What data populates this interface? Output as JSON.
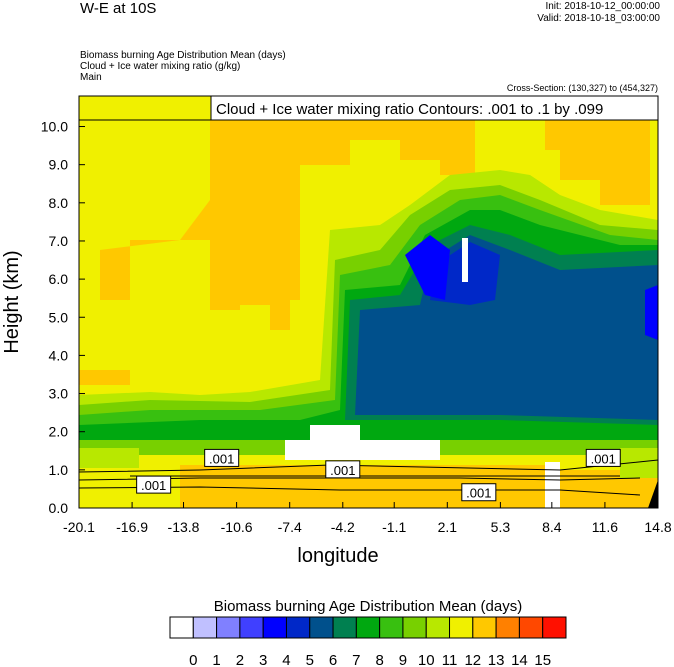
{
  "header": {
    "title": "W-E at 10S",
    "init": "Init: 2018-10-12_00:00:00",
    "valid": "Valid: 2018-10-18_03:00:00",
    "field1": "Biomass burning Age Distribution Mean   (days)",
    "field2": "Cloud + Ice water mixing ratio   (g/kg)",
    "field3": "Main",
    "cross_section": "Cross-Section: (130,327) to (454,327)"
  },
  "chart_data": {
    "type": "heatmap",
    "title": "W-E at 10S",
    "xlabel": "longitude",
    "ylabel": "Height (km)",
    "xlim": [
      -20.1,
      14.8
    ],
    "ylim": [
      0.0,
      10.8
    ],
    "xticks": [
      "-20.1",
      "-16.9",
      "-13.8",
      "-10.6",
      "-7.4",
      "-4.2",
      "-1.1",
      "2.1",
      "5.3",
      "8.4",
      "11.6",
      "14.8"
    ],
    "yticks": [
      "0.0",
      "1.0",
      "2.0",
      "3.0",
      "4.0",
      "5.0",
      "6.0",
      "7.0",
      "8.0",
      "9.0",
      "10.0"
    ],
    "contour_legend": "Cloud + Ice water mixing ratio Contours: .001 to .1 by .099",
    "contour_labels": [
      ".001",
      ".001",
      ".001",
      ".001",
      ".001"
    ],
    "colorbar": {
      "title": "Biomass burning Age Distribution Mean  (days)",
      "labels": [
        "0",
        "1",
        "2",
        "3",
        "4",
        "5",
        "6",
        "7",
        "8",
        "9",
        "10",
        "11",
        "12",
        "13",
        "14",
        "15"
      ],
      "colors": [
        "#ffffff",
        "#c0c0ff",
        "#8080ff",
        "#4040ff",
        "#0000ff",
        "#0028c8",
        "#00508c",
        "#008050",
        "#00a810",
        "#38c010",
        "#78d000",
        "#b8e800",
        "#f0f000",
        "#ffc800",
        "#ff8000",
        "#ff4800",
        "#ff1000"
      ]
    }
  }
}
